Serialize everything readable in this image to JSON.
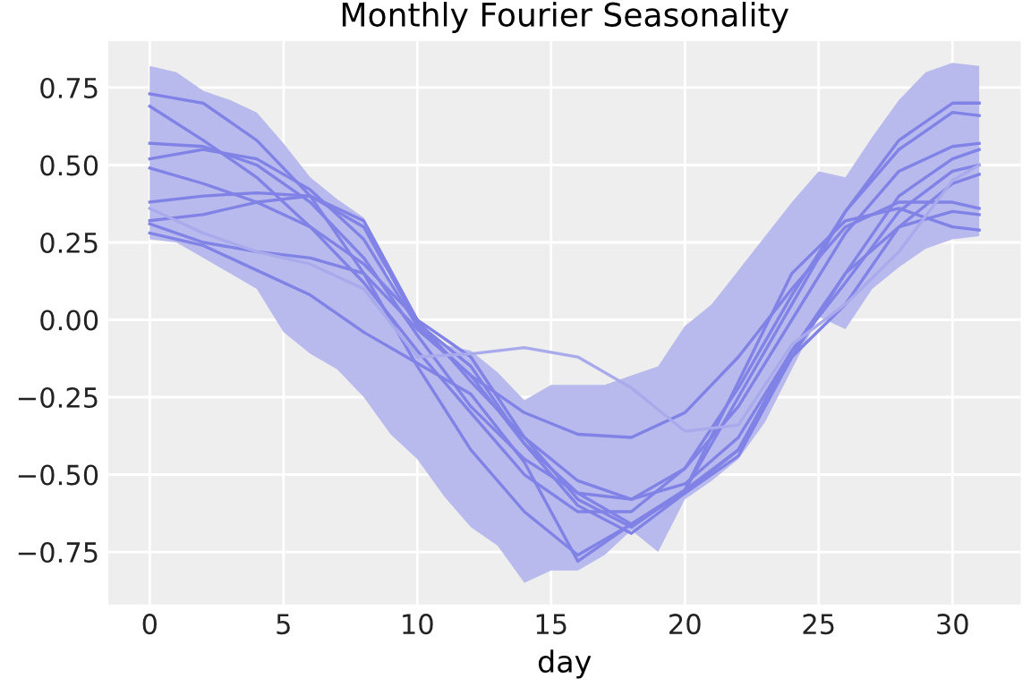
{
  "chart_data": {
    "type": "line",
    "title": "Monthly Fourier Seasonality",
    "xlabel": "day",
    "x": [
      0,
      2,
      4,
      6,
      8,
      10,
      12,
      14,
      16,
      18,
      20,
      22,
      24,
      26,
      28,
      30,
      31
    ],
    "series": [
      {
        "type": "line",
        "color": "#b8b9ec",
        "x": [
          0,
          1,
          2,
          3,
          4,
          5,
          6,
          7,
          8,
          9,
          10,
          11,
          12,
          13,
          14,
          15,
          16,
          17,
          18,
          19,
          20,
          21,
          22,
          23,
          24,
          25,
          26,
          27,
          28,
          29,
          30,
          31
        ],
        "values": [
          null,
          null,
          null,
          null,
          null,
          null,
          null,
          null,
          null,
          null,
          null,
          null,
          null,
          null,
          null,
          null,
          null,
          null,
          null,
          null,
          null,
          null,
          null,
          null,
          null,
          null,
          null,
          null,
          null,
          null,
          null,
          null
        ],
        "upper": [
          0.82,
          0.8,
          0.74,
          0.71,
          0.67,
          0.57,
          0.46,
          0.39,
          0.33,
          0.12,
          0.0,
          -0.08,
          -0.1,
          -0.17,
          -0.26,
          -0.21,
          -0.21,
          -0.21,
          -0.18,
          -0.15,
          -0.02,
          0.05,
          0.16,
          0.27,
          0.38,
          0.48,
          0.46,
          0.59,
          0.71,
          0.8,
          0.83,
          0.82
        ],
        "lower": [
          0.26,
          0.25,
          0.2,
          0.15,
          0.1,
          -0.04,
          -0.11,
          -0.16,
          -0.25,
          -0.37,
          -0.45,
          -0.57,
          -0.67,
          -0.73,
          -0.85,
          -0.81,
          -0.81,
          -0.76,
          -0.68,
          -0.75,
          -0.58,
          -0.52,
          -0.45,
          -0.33,
          -0.16,
          0.01,
          -0.03,
          0.1,
          0.17,
          0.23,
          0.26,
          0.27
        ]
      },
      {
        "color": "#8082e6",
        "values": [
          0.73,
          0.7,
          0.58,
          0.4,
          0.15,
          -0.15,
          -0.42,
          -0.62,
          -0.76,
          -0.66,
          -0.55,
          -0.25,
          0.05,
          0.35,
          0.58,
          0.7,
          0.7
        ]
      },
      {
        "color": "#8082e6",
        "values": [
          0.69,
          0.58,
          0.46,
          0.3,
          0.12,
          -0.1,
          -0.3,
          -0.5,
          -0.62,
          -0.62,
          -0.48,
          -0.22,
          0.08,
          0.35,
          0.55,
          0.67,
          0.66
        ]
      },
      {
        "color": "#8082e6",
        "values": [
          0.57,
          0.56,
          0.5,
          0.38,
          0.2,
          -0.05,
          -0.28,
          -0.45,
          -0.56,
          -0.58,
          -0.48,
          -0.28,
          0.0,
          0.28,
          0.48,
          0.56,
          0.57
        ]
      },
      {
        "color": "#8082e6",
        "values": [
          0.52,
          0.55,
          0.52,
          0.42,
          0.26,
          -0.02,
          -0.18,
          -0.4,
          -0.56,
          -0.66,
          -0.56,
          -0.42,
          -0.1,
          0.15,
          0.4,
          0.52,
          0.55
        ]
      },
      {
        "color": "#8082e6",
        "values": [
          0.49,
          0.44,
          0.38,
          0.3,
          0.18,
          0.0,
          -0.2,
          -0.38,
          -0.52,
          -0.58,
          -0.53,
          -0.38,
          -0.1,
          0.12,
          0.35,
          0.48,
          0.5
        ]
      },
      {
        "color": "#8082e6",
        "values": [
          0.38,
          0.4,
          0.41,
          0.4,
          0.3,
          -0.01,
          -0.15,
          -0.4,
          -0.6,
          -0.69,
          -0.56,
          -0.44,
          -0.12,
          0.05,
          0.3,
          0.44,
          0.47
        ]
      },
      {
        "color": "#8082e6",
        "values": [
          0.32,
          0.34,
          0.38,
          0.4,
          0.32,
          0.0,
          -0.12,
          -0.38,
          -0.58,
          -0.67,
          -0.55,
          -0.42,
          -0.12,
          0.15,
          0.3,
          0.35,
          0.34
        ]
      },
      {
        "color": "#8082e6",
        "values": [
          0.31,
          0.25,
          0.22,
          0.2,
          0.15,
          -0.03,
          -0.18,
          -0.3,
          -0.37,
          -0.38,
          -0.3,
          -0.12,
          0.1,
          0.3,
          0.38,
          0.38,
          0.36
        ]
      },
      {
        "color": "#8082e6",
        "values": [
          0.28,
          0.24,
          0.16,
          0.08,
          -0.04,
          -0.14,
          -0.24,
          -0.46,
          -0.78,
          -0.66,
          -0.55,
          -0.2,
          0.15,
          0.32,
          0.36,
          0.3,
          0.29
        ]
      },
      {
        "color": "#a9aaec",
        "values": [
          0.36,
          0.28,
          0.22,
          0.18,
          0.1,
          -0.12,
          -0.11,
          -0.09,
          -0.12,
          -0.22,
          -0.36,
          -0.34,
          -0.08,
          0.05,
          0.22,
          0.45,
          0.5
        ]
      }
    ],
    "xlim": [
      -1.55,
      32.55
    ],
    "xticks": [
      0,
      5,
      10,
      15,
      20,
      25,
      30
    ],
    "ylim": [
      -0.92,
      0.9
    ],
    "yticks": [
      {
        "value": -0.75,
        "label": "−0.75"
      },
      {
        "value": -0.5,
        "label": "−0.50"
      },
      {
        "value": -0.25,
        "label": "−0.25"
      },
      {
        "value": 0,
        "label": "0.00"
      },
      {
        "value": 0.25,
        "label": "0.25"
      },
      {
        "value": 0.5,
        "label": "0.50"
      },
      {
        "value": 0.75,
        "label": "0.75"
      }
    ],
    "grid": true,
    "line_style": "solid"
  }
}
